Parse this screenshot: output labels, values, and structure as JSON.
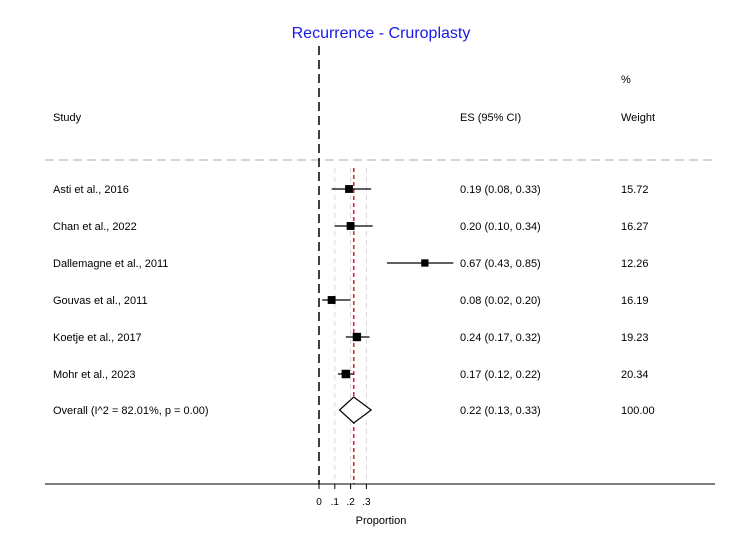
{
  "chart_data": {
    "type": "forest",
    "title": "Recurrence - Cruroplasty",
    "xlabel": "Proportion",
    "x_ticks": [
      {
        "value": 0,
        "label": "0"
      },
      {
        "value": 0.1,
        "label": ".1"
      },
      {
        "value": 0.2,
        "label": ".2"
      },
      {
        "value": 0.3,
        "label": ".3"
      }
    ],
    "headers": {
      "study": "Study",
      "es": "ES (95% CI)",
      "weight_top": "%",
      "weight": "Weight"
    },
    "null_line": 0,
    "overall_line": 0.22,
    "studies": [
      {
        "name": "Asti et al., 2016",
        "es": 0.19,
        "lo": 0.08,
        "hi": 0.33,
        "es_text": "0.19 (0.08, 0.33)",
        "weight": "15.72"
      },
      {
        "name": "Chan et al., 2022",
        "es": 0.2,
        "lo": 0.1,
        "hi": 0.34,
        "es_text": "0.20 (0.10, 0.34)",
        "weight": "16.27"
      },
      {
        "name": "Dallemagne et al., 2011",
        "es": 0.67,
        "lo": 0.43,
        "hi": 0.85,
        "es_text": "0.67 (0.43, 0.85)",
        "weight": "12.26"
      },
      {
        "name": "Gouvas et al., 2011",
        "es": 0.08,
        "lo": 0.02,
        "hi": 0.2,
        "es_text": "0.08 (0.02, 0.20)",
        "weight": "16.19"
      },
      {
        "name": "Koetje et al., 2017",
        "es": 0.24,
        "lo": 0.17,
        "hi": 0.32,
        "es_text": "0.24 (0.17, 0.32)",
        "weight": "19.23"
      },
      {
        "name": "Mohr et al., 2023",
        "es": 0.17,
        "lo": 0.12,
        "hi": 0.22,
        "es_text": "0.17 (0.12, 0.22)",
        "weight": "20.34"
      }
    ],
    "overall": {
      "name": "Overall  (I^2 = 82.01%, p = 0.00)",
      "es": 0.22,
      "lo": 0.13,
      "hi": 0.33,
      "es_text": "0.22 (0.13, 0.33)",
      "weight": "100.00"
    },
    "colors": {
      "title": "#1a1ae6",
      "overall_line": "#e0202a",
      "separator": "#bbbbbb",
      "grid": "#d8d8d8"
    }
  }
}
